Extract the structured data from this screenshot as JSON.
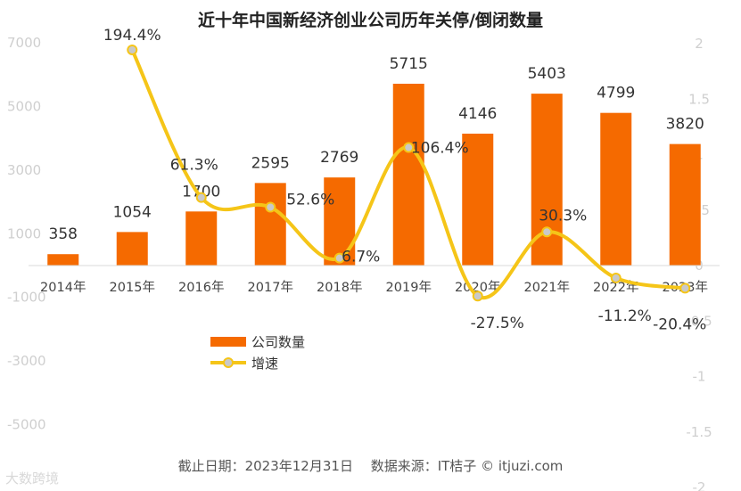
{
  "title": "近十年中国新经济创业公司历年关停/倒闭数量",
  "footer": "截止日期：2023年12月31日　 数据来源：IT桔子 © itjuzi.com",
  "watermark": "大数跨境",
  "colors": {
    "bar": "#f56a00",
    "line": "#f5c518",
    "marker_fill": "#c9c9c9",
    "tick": "#cfcfcf",
    "axis_text": "#444444"
  },
  "chart_data": {
    "type": "bar+line",
    "title": "近十年中国新经济创业公司历年关停/倒闭数量",
    "categories": [
      "2014年",
      "2015年",
      "2016年",
      "2017年",
      "2018年",
      "2019年",
      "2020年",
      "2021年",
      "2022年",
      "2023年"
    ],
    "series": [
      {
        "name": "公司数量",
        "type": "bar",
        "axis": "left",
        "values": [
          358,
          1054,
          1700,
          2595,
          2769,
          5715,
          4146,
          5403,
          4799,
          3820
        ],
        "labels": [
          "358",
          "1054",
          "1700",
          "2595",
          "2769",
          "5715",
          "4146",
          "5403",
          "4799",
          "3820"
        ]
      },
      {
        "name": "增速",
        "type": "line",
        "axis": "right",
        "values": [
          null,
          1.944,
          0.613,
          0.526,
          0.067,
          1.064,
          -0.275,
          0.303,
          -0.112,
          -0.204
        ],
        "labels": [
          "",
          "194.4%",
          "61.3%",
          "52.6%",
          "6.7%",
          "106.4%",
          "-27.5%",
          "30.3%",
          "-11.2%",
          "-20.4%"
        ]
      }
    ],
    "y_left": {
      "min": -7000,
      "max": 7000,
      "ticks": [
        "7000",
        "5000",
        "3000",
        "1000",
        "-1000",
        "-3000",
        "-5000"
      ]
    },
    "y_right": {
      "min": -2,
      "max": 2,
      "ticks": [
        "2",
        "1.5",
        "1",
        "0.5",
        "0",
        "-0.5",
        "-1",
        "-1.5",
        "-2"
      ]
    },
    "legend": {
      "position": "center-left",
      "items": [
        "公司数量",
        "增速"
      ]
    },
    "grid": false
  }
}
